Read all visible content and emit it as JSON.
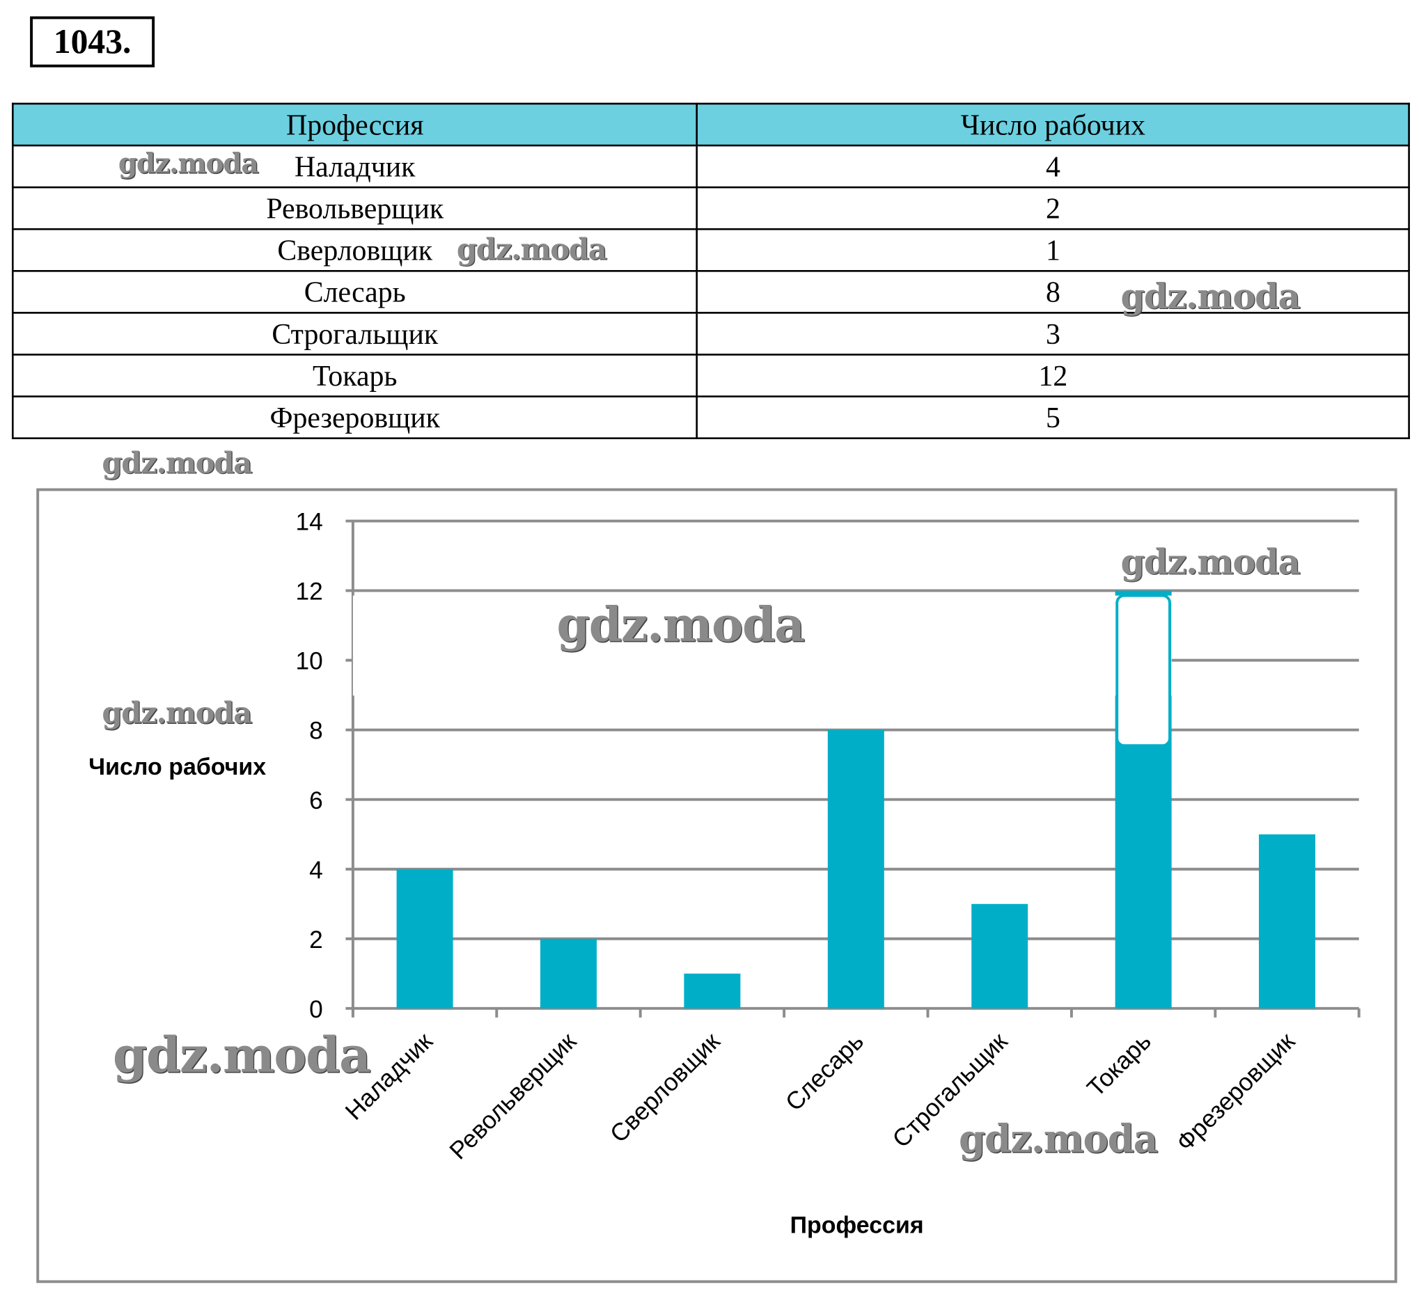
{
  "problem_number": "1043.",
  "table": {
    "headers": [
      "Профессия",
      "Число рабочих"
    ],
    "rows": [
      [
        "Наладчик",
        "4"
      ],
      [
        "Револьверщик",
        "2"
      ],
      [
        "Сверловщик",
        "1"
      ],
      [
        "Слесарь",
        "8"
      ],
      [
        "Строгальщик",
        "3"
      ],
      [
        "Токарь",
        "12"
      ],
      [
        "Фрезеровщик",
        "5"
      ]
    ]
  },
  "watermark": "gdz.moda",
  "chart_data": {
    "type": "bar",
    "categories": [
      "Наладчик",
      "Револьверщик",
      "Сверловщик",
      "Слесарь",
      "Строгальщик",
      "Токарь",
      "Фрезеровщик"
    ],
    "values": [
      4,
      2,
      1,
      8,
      3,
      12,
      5
    ],
    "xlabel": "Профессия",
    "ylabel": "Число рабочих",
    "ylim": [
      0,
      14
    ],
    "yticks": [
      "0",
      "2",
      "4",
      "6",
      "8",
      "10",
      "12",
      "14"
    ],
    "grid": true,
    "bar_color": "#00aec7"
  }
}
